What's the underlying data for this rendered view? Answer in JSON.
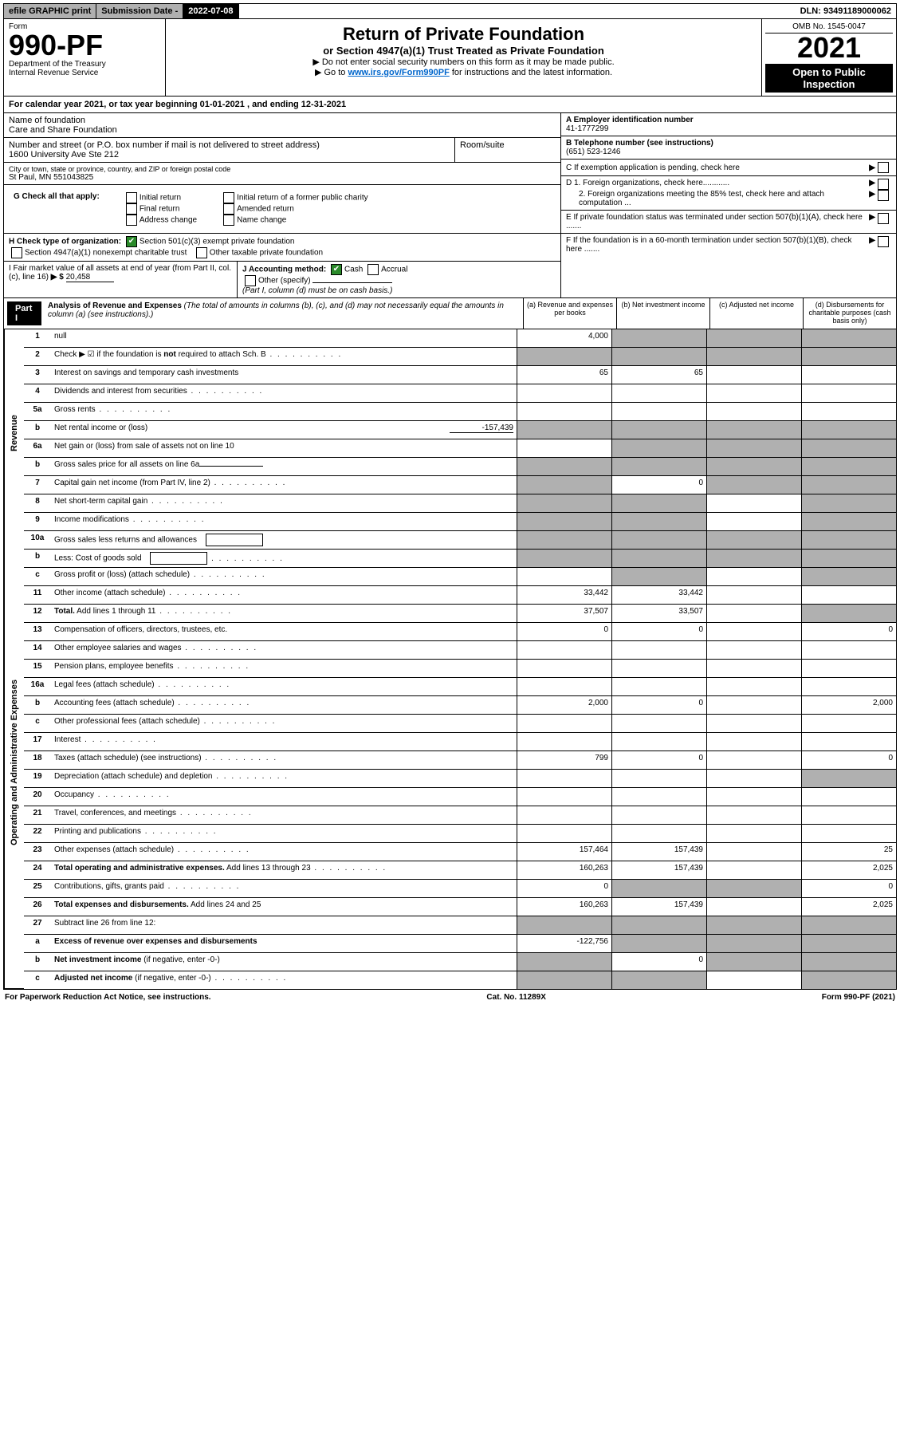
{
  "topbar": {
    "efile": "efile GRAPHIC print",
    "sub_label": "Submission Date - ",
    "sub_date": "2022-07-08",
    "dln": "DLN: 93491189000062"
  },
  "header": {
    "form_label": "Form",
    "form_num": "990-PF",
    "dept": "Department of the Treasury",
    "irs": "Internal Revenue Service",
    "title": "Return of Private Foundation",
    "subtitle": "or Section 4947(a)(1) Trust Treated as Private Foundation",
    "bullet1": "▶ Do not enter social security numbers on this form as it may be made public.",
    "bullet2_pre": "▶ Go to ",
    "bullet2_link": "www.irs.gov/Form990PF",
    "bullet2_post": " for instructions and the latest information.",
    "omb": "OMB No. 1545-0047",
    "year": "2021",
    "open": "Open to Public Inspection"
  },
  "cal_year": "For calendar year 2021, or tax year beginning 01-01-2021                               , and ending 12-31-2021",
  "foundation": {
    "name_label": "Name of foundation",
    "name": "Care and Share Foundation",
    "addr_label": "Number and street (or P.O. box number if mail is not delivered to street address)",
    "addr": "1600 University Ave Ste 212",
    "room_label": "Room/suite",
    "city_label": "City or town, state or province, country, and ZIP or foreign postal code",
    "city": "St Paul, MN  551043825"
  },
  "right_info": {
    "a_label": "A Employer identification number",
    "a_val": "41-1777299",
    "b_label": "B Telephone number (see instructions)",
    "b_val": "(651) 523-1246",
    "c_label": "C If exemption application is pending, check here",
    "d1": "D 1. Foreign organizations, check here............",
    "d2": "2. Foreign organizations meeting the 85% test, check here and attach computation ...",
    "e": "E  If private foundation status was terminated under section 507(b)(1)(A), check here .......",
    "f": "F  If the foundation is in a 60-month termination under section 507(b)(1)(B), check here .......",
    "arrow": "▶"
  },
  "g": {
    "label": "G Check all that apply:",
    "items": [
      "Initial return",
      "Final return",
      "Address change",
      "Initial return of a former public charity",
      "Amended return",
      "Name change"
    ]
  },
  "h": {
    "label": "H Check type of organization:",
    "opt1": "Section 501(c)(3) exempt private foundation",
    "opt2": "Section 4947(a)(1) nonexempt charitable trust",
    "opt3": "Other taxable private foundation"
  },
  "ij": {
    "i_label": "I Fair market value of all assets at end of year (from Part II, col. (c), line 16)",
    "i_arrow": "▶ $",
    "i_val": "20,458",
    "j_label": "J Accounting method:",
    "cash": "Cash",
    "accrual": "Accrual",
    "other": "Other (specify)",
    "note": "(Part I, column (d) must be on cash basis.)"
  },
  "part1": {
    "label": "Part I",
    "title": "Analysis of Revenue and Expenses",
    "subtitle": "(The total of amounts in columns (b), (c), and (d) may not necessarily equal the amounts in column (a) (see instructions).)",
    "col_a": "(a)  Revenue and expenses per books",
    "col_b": "(b)  Net investment income",
    "col_c": "(c)  Adjusted net income",
    "col_d": "(d)  Disbursements for charitable purposes (cash basis only)"
  },
  "sidebar": {
    "revenue": "Revenue",
    "expenses": "Operating and Administrative Expenses"
  },
  "lines": [
    {
      "n": "1",
      "d": null,
      "a": "4,000",
      "b": null,
      "c": null,
      "greyB": true,
      "greyC": true,
      "greyD": true
    },
    {
      "n": "2",
      "d": "Check ▶ ☑ if the foundation is <b>not</b> required to attach Sch. B",
      "dots": true,
      "greyA": true,
      "greyB": true,
      "greyC": true,
      "greyD": true
    },
    {
      "n": "3",
      "d": "Interest on savings and temporary cash investments",
      "a": "65",
      "b": "65"
    },
    {
      "n": "4",
      "d": "Dividends and interest from securities",
      "dots": true
    },
    {
      "n": "5a",
      "d": "Gross rents",
      "dots": true
    },
    {
      "n": "b",
      "d": "Net rental income or (loss)",
      "inline": "-157,439",
      "greyA": true,
      "greyB": true,
      "greyC": true,
      "greyD": true
    },
    {
      "n": "6a",
      "d": "Net gain or (loss) from sale of assets not on line 10",
      "greyB": true,
      "greyC": true,
      "greyD": true
    },
    {
      "n": "b",
      "d": "Gross sales price for all assets on line 6a",
      "underline": true,
      "greyA": true,
      "greyB": true,
      "greyC": true,
      "greyD": true
    },
    {
      "n": "7",
      "d": "Capital gain net income (from Part IV, line 2)",
      "dots": true,
      "greyA": true,
      "b": "0",
      "greyC": true,
      "greyD": true
    },
    {
      "n": "8",
      "d": "Net short-term capital gain",
      "dots": true,
      "greyA": true,
      "greyB": true,
      "greyD": true
    },
    {
      "n": "9",
      "d": "Income modifications",
      "dots": true,
      "greyA": true,
      "greyB": true,
      "greyD": true
    },
    {
      "n": "10a",
      "d": "Gross sales less returns and allowances",
      "box": true,
      "greyA": true,
      "greyB": true,
      "greyC": true,
      "greyD": true
    },
    {
      "n": "b",
      "d": "Less: Cost of goods sold",
      "dots": true,
      "box": true,
      "greyA": true,
      "greyB": true,
      "greyC": true,
      "greyD": true
    },
    {
      "n": "c",
      "d": "Gross profit or (loss) (attach schedule)",
      "dots": true,
      "greyB": true,
      "greyD": true
    },
    {
      "n": "11",
      "d": "Other income (attach schedule)",
      "dots": true,
      "a": "33,442",
      "b": "33,442"
    },
    {
      "n": "12",
      "d": "<b>Total.</b> Add lines 1 through 11",
      "dots": true,
      "a": "37,507",
      "b": "33,507",
      "greyD": true
    }
  ],
  "exp_lines": [
    {
      "n": "13",
      "d": "Compensation of officers, directors, trustees, etc.",
      "a": "0",
      "b": "0",
      "d_": "0"
    },
    {
      "n": "14",
      "d": "Other employee salaries and wages",
      "dots": true
    },
    {
      "n": "15",
      "d": "Pension plans, employee benefits",
      "dots": true
    },
    {
      "n": "16a",
      "d": "Legal fees (attach schedule)",
      "dots": true
    },
    {
      "n": "b",
      "d": "Accounting fees (attach schedule)",
      "dots": true,
      "a": "2,000",
      "b": "0",
      "d_": "2,000"
    },
    {
      "n": "c",
      "d": "Other professional fees (attach schedule)",
      "dots": true
    },
    {
      "n": "17",
      "d": "Interest",
      "dots": true
    },
    {
      "n": "18",
      "d": "Taxes (attach schedule) (see instructions)",
      "dots": true,
      "a": "799",
      "b": "0",
      "d_": "0"
    },
    {
      "n": "19",
      "d": "Depreciation (attach schedule) and depletion",
      "dots": true,
      "greyD": true
    },
    {
      "n": "20",
      "d": "Occupancy",
      "dots": true
    },
    {
      "n": "21",
      "d": "Travel, conferences, and meetings",
      "dots": true
    },
    {
      "n": "22",
      "d": "Printing and publications",
      "dots": true
    },
    {
      "n": "23",
      "d": "Other expenses (attach schedule)",
      "dots": true,
      "a": "157,464",
      "b": "157,439",
      "d_": "25"
    },
    {
      "n": "24",
      "d": "<b>Total operating and administrative expenses.</b> Add lines 13 through 23",
      "dots": true,
      "a": "160,263",
      "b": "157,439",
      "d_": "2,025"
    },
    {
      "n": "25",
      "d": "Contributions, gifts, grants paid",
      "dots": true,
      "a": "0",
      "greyB": true,
      "greyC": true,
      "d_": "0"
    },
    {
      "n": "26",
      "d": "<b>Total expenses and disbursements.</b> Add lines 24 and 25",
      "a": "160,263",
      "b": "157,439",
      "d_": "2,025"
    },
    {
      "n": "27",
      "d": "Subtract line 26 from line 12:",
      "greyA": true,
      "greyB": true,
      "greyC": true,
      "greyD": true
    },
    {
      "n": "a",
      "d": "<b>Excess of revenue over expenses and disbursements</b>",
      "a": "-122,756",
      "greyB": true,
      "greyC": true,
      "greyD": true
    },
    {
      "n": "b",
      "d": "<b>Net investment income</b> (if negative, enter -0-)",
      "greyA": true,
      "b": "0",
      "greyC": true,
      "greyD": true
    },
    {
      "n": "c",
      "d": "<b>Adjusted net income</b> (if negative, enter -0-)",
      "dots": true,
      "greyA": true,
      "greyB": true,
      "greyD": true
    }
  ],
  "footer": {
    "left": "For Paperwork Reduction Act Notice, see instructions.",
    "mid": "Cat. No. 11289X",
    "right": "Form 990-PF (2021)"
  }
}
